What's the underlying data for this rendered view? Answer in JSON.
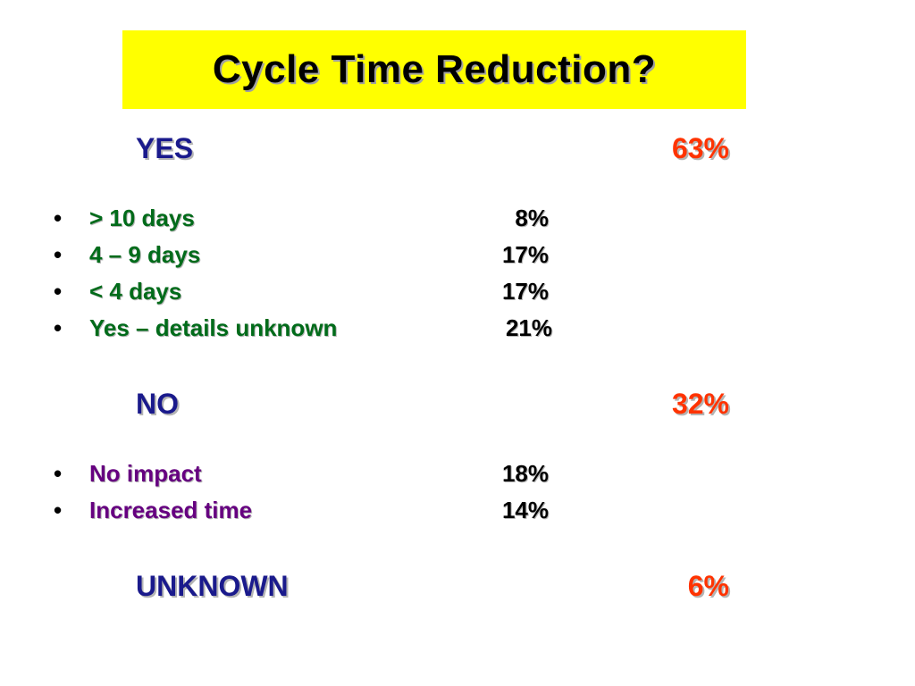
{
  "title": "Cycle Time Reduction?",
  "colors": {
    "title_background": "#ffff00",
    "heading": "#1a1a8c",
    "percentage": "#ff3300",
    "yes_items": "#006b1a",
    "no_items": "#660080"
  },
  "sections": [
    {
      "label": "YES",
      "value": "63%",
      "items": [
        {
          "bullet": "•",
          "label": "> 10 days",
          "value": "8%"
        },
        {
          "bullet": "•",
          "label": "4 – 9 days",
          "value": "17%"
        },
        {
          "bullet": "•",
          "label": "< 4 days",
          "value": "17%"
        },
        {
          "bullet": "•",
          "label": "Yes – details unknown",
          "value": "21%"
        }
      ]
    },
    {
      "label": "NO",
      "value": "32%",
      "items": [
        {
          "bullet": "•",
          "label": "No impact",
          "value": "18%"
        },
        {
          "bullet": "•",
          "label": "Increased time",
          "value": "14%"
        }
      ]
    },
    {
      "label": "UNKNOWN",
      "value": "6%",
      "items": []
    }
  ]
}
